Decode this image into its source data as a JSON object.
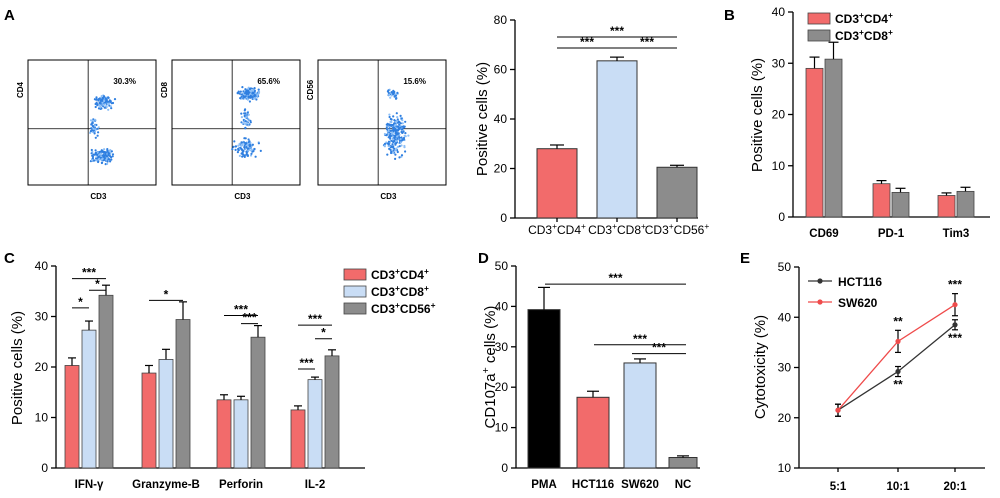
{
  "chart_data": [
    {
      "id": "A_flow",
      "type": "scatter",
      "panel": "A",
      "title": "",
      "plots": [
        {
          "xlabel": "CD3",
          "ylabel": "CD4",
          "percent": "30.3%"
        },
        {
          "xlabel": "CD3",
          "ylabel": "CD8",
          "percent": "65.6%"
        },
        {
          "xlabel": "CD3",
          "ylabel": "CD56",
          "percent": "15.6%"
        }
      ]
    },
    {
      "id": "A_bar",
      "type": "bar",
      "panel": "",
      "ylabel": "Positive cells (%)",
      "ylim": [
        0,
        80
      ],
      "yticks": [
        "0",
        "20",
        "40",
        "60",
        "80"
      ],
      "categories": [
        "CD3⁺CD4⁺",
        "CD3⁺CD8⁺",
        "CD3⁺CD56⁺"
      ],
      "values": [
        28,
        63.5,
        20.5
      ],
      "errors": [
        1.5,
        1.5,
        0.8
      ],
      "colors": [
        "#f26b6b",
        "#c9ddf5",
        "#8c8c8c"
      ],
      "significance": [
        {
          "from": 0,
          "to": 2,
          "label": "***"
        },
        {
          "from": 0,
          "to": 1,
          "label": "***"
        },
        {
          "from": 1,
          "to": 2,
          "label": "***"
        }
      ]
    },
    {
      "id": "B",
      "type": "bar",
      "panel": "B",
      "ylabel": "Positive cells (%)",
      "ylim": [
        0,
        40
      ],
      "yticks": [
        "0",
        "10",
        "20",
        "30",
        "40"
      ],
      "categories": [
        "CD69",
        "PD-1",
        "Tim3"
      ],
      "series": [
        {
          "name": "CD3⁺CD4⁺",
          "color": "#f26b6b",
          "values": [
            29,
            6.5,
            4.2
          ],
          "errors": [
            2.2,
            0.6,
            0.5
          ]
        },
        {
          "name": "CD3⁺CD8⁺",
          "color": "#8c8c8c",
          "values": [
            30.8,
            4.8,
            5
          ],
          "errors": [
            3.3,
            0.8,
            0.8
          ]
        }
      ],
      "legend": "top-right"
    },
    {
      "id": "C",
      "type": "bar",
      "panel": "C",
      "ylabel": "Positive cells (%)",
      "ylim": [
        0,
        40
      ],
      "yticks": [
        "0",
        "10",
        "20",
        "30",
        "40"
      ],
      "categories": [
        "IFN-γ",
        "Granzyme-B",
        "Perforin",
        "IL-2"
      ],
      "series": [
        {
          "name": "CD3⁺CD4⁺",
          "color": "#f26b6b",
          "values": [
            20.3,
            18.8,
            13.5,
            11.5
          ],
          "errors": [
            1.5,
            1.5,
            1.0,
            0.8
          ]
        },
        {
          "name": "CD3⁺CD8⁺",
          "color": "#c9ddf5",
          "values": [
            27.3,
            21.5,
            13.5,
            17.5
          ],
          "errors": [
            1.8,
            2.0,
            0.7,
            0.5
          ]
        },
        {
          "name": "CD3⁺CD56⁺",
          "color": "#8c8c8c",
          "values": [
            34.2,
            29.4,
            25.9,
            22.2
          ],
          "errors": [
            2.0,
            3.5,
            2.3,
            1.2
          ]
        }
      ],
      "legend": "top-right",
      "significance": [
        {
          "group": 0,
          "from": 0,
          "to": 2,
          "label": "***",
          "y": 37.5
        },
        {
          "group": 0,
          "from": 0,
          "to": 1,
          "label": "*",
          "y": 31.7
        },
        {
          "group": 0,
          "from": 1,
          "to": 2,
          "label": "*",
          "y": 35.2
        },
        {
          "group": 1,
          "from": 0,
          "to": 2,
          "label": "*",
          "y": 33.2
        },
        {
          "group": 2,
          "from": 0,
          "to": 2,
          "label": "***",
          "y": 30.2
        },
        {
          "group": 2,
          "from": 1,
          "to": 2,
          "label": "***",
          "y": 28.6
        },
        {
          "group": 3,
          "from": 0,
          "to": 2,
          "label": "***",
          "y": 28.3
        },
        {
          "group": 3,
          "from": 1,
          "to": 2,
          "label": "*",
          "y": 25.6
        },
        {
          "group": 3,
          "from": 0,
          "to": 1,
          "label": "***",
          "y": 19.6
        }
      ]
    },
    {
      "id": "D",
      "type": "bar",
      "panel": "D",
      "ylabel": "CD107a⁺ cells (%)",
      "ylim": [
        0,
        50
      ],
      "yticks": [
        "0",
        "10",
        "20",
        "30",
        "40",
        "50"
      ],
      "categories": [
        "PMA",
        "HCT116",
        "SW620",
        "NC"
      ],
      "values": [
        39.2,
        17.5,
        26,
        2.6
      ],
      "errors": [
        5.5,
        1.5,
        1.0,
        0.4
      ],
      "colors": [
        "#000000",
        "#f26b6b",
        "#c9ddf5",
        "#8c8c8c"
      ],
      "significance": [
        {
          "from": 0,
          "to": 3,
          "label": "***",
          "y": 45.5
        },
        {
          "from": 1,
          "to": 3,
          "label": "***",
          "y": 30.5
        },
        {
          "from": 2,
          "to": 3,
          "label": "***",
          "y": 28.3
        }
      ]
    },
    {
      "id": "E",
      "type": "line",
      "panel": "E",
      "ylabel": "Cytotoxicity (%)",
      "ylim": [
        10,
        50
      ],
      "yticks": [
        "10",
        "20",
        "30",
        "40",
        "50"
      ],
      "categories": [
        "5:1",
        "10:1",
        "20:1"
      ],
      "series": [
        {
          "name": "HCT116",
          "color": "#333333",
          "values": [
            21.5,
            29.2,
            38.5
          ],
          "errors": [
            1.2,
            1.0,
            1.0
          ],
          "marks": [
            "",
            "**",
            "***"
          ],
          "mark_side": "below"
        },
        {
          "name": "SW620",
          "color": "#ef4b4b",
          "values": [
            21.5,
            35.2,
            42.5
          ],
          "errors": [
            1.2,
            2.2,
            2.2
          ],
          "marks": [
            "",
            "**",
            "***"
          ],
          "mark_side": "above"
        }
      ],
      "legend": "top-left"
    }
  ]
}
